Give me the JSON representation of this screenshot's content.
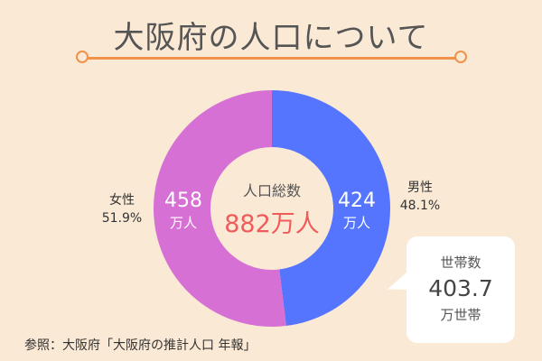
{
  "title": "大阪府の人口について",
  "chart_data": {
    "type": "donut",
    "series": [
      {
        "name": "男性",
        "value": 424,
        "unit": "万人",
        "percent": "48.1%",
        "color": "#5575ff"
      },
      {
        "name": "女性",
        "value": 458,
        "unit": "万人",
        "percent": "51.9%",
        "color": "#d670d4"
      }
    ],
    "center_label": "人口総数",
    "center_value": "882万人"
  },
  "households": {
    "label": "世帯数",
    "value": "403.7",
    "unit": "万世帯"
  },
  "source": "参照：大阪府「大阪府の推計人口 年報」"
}
